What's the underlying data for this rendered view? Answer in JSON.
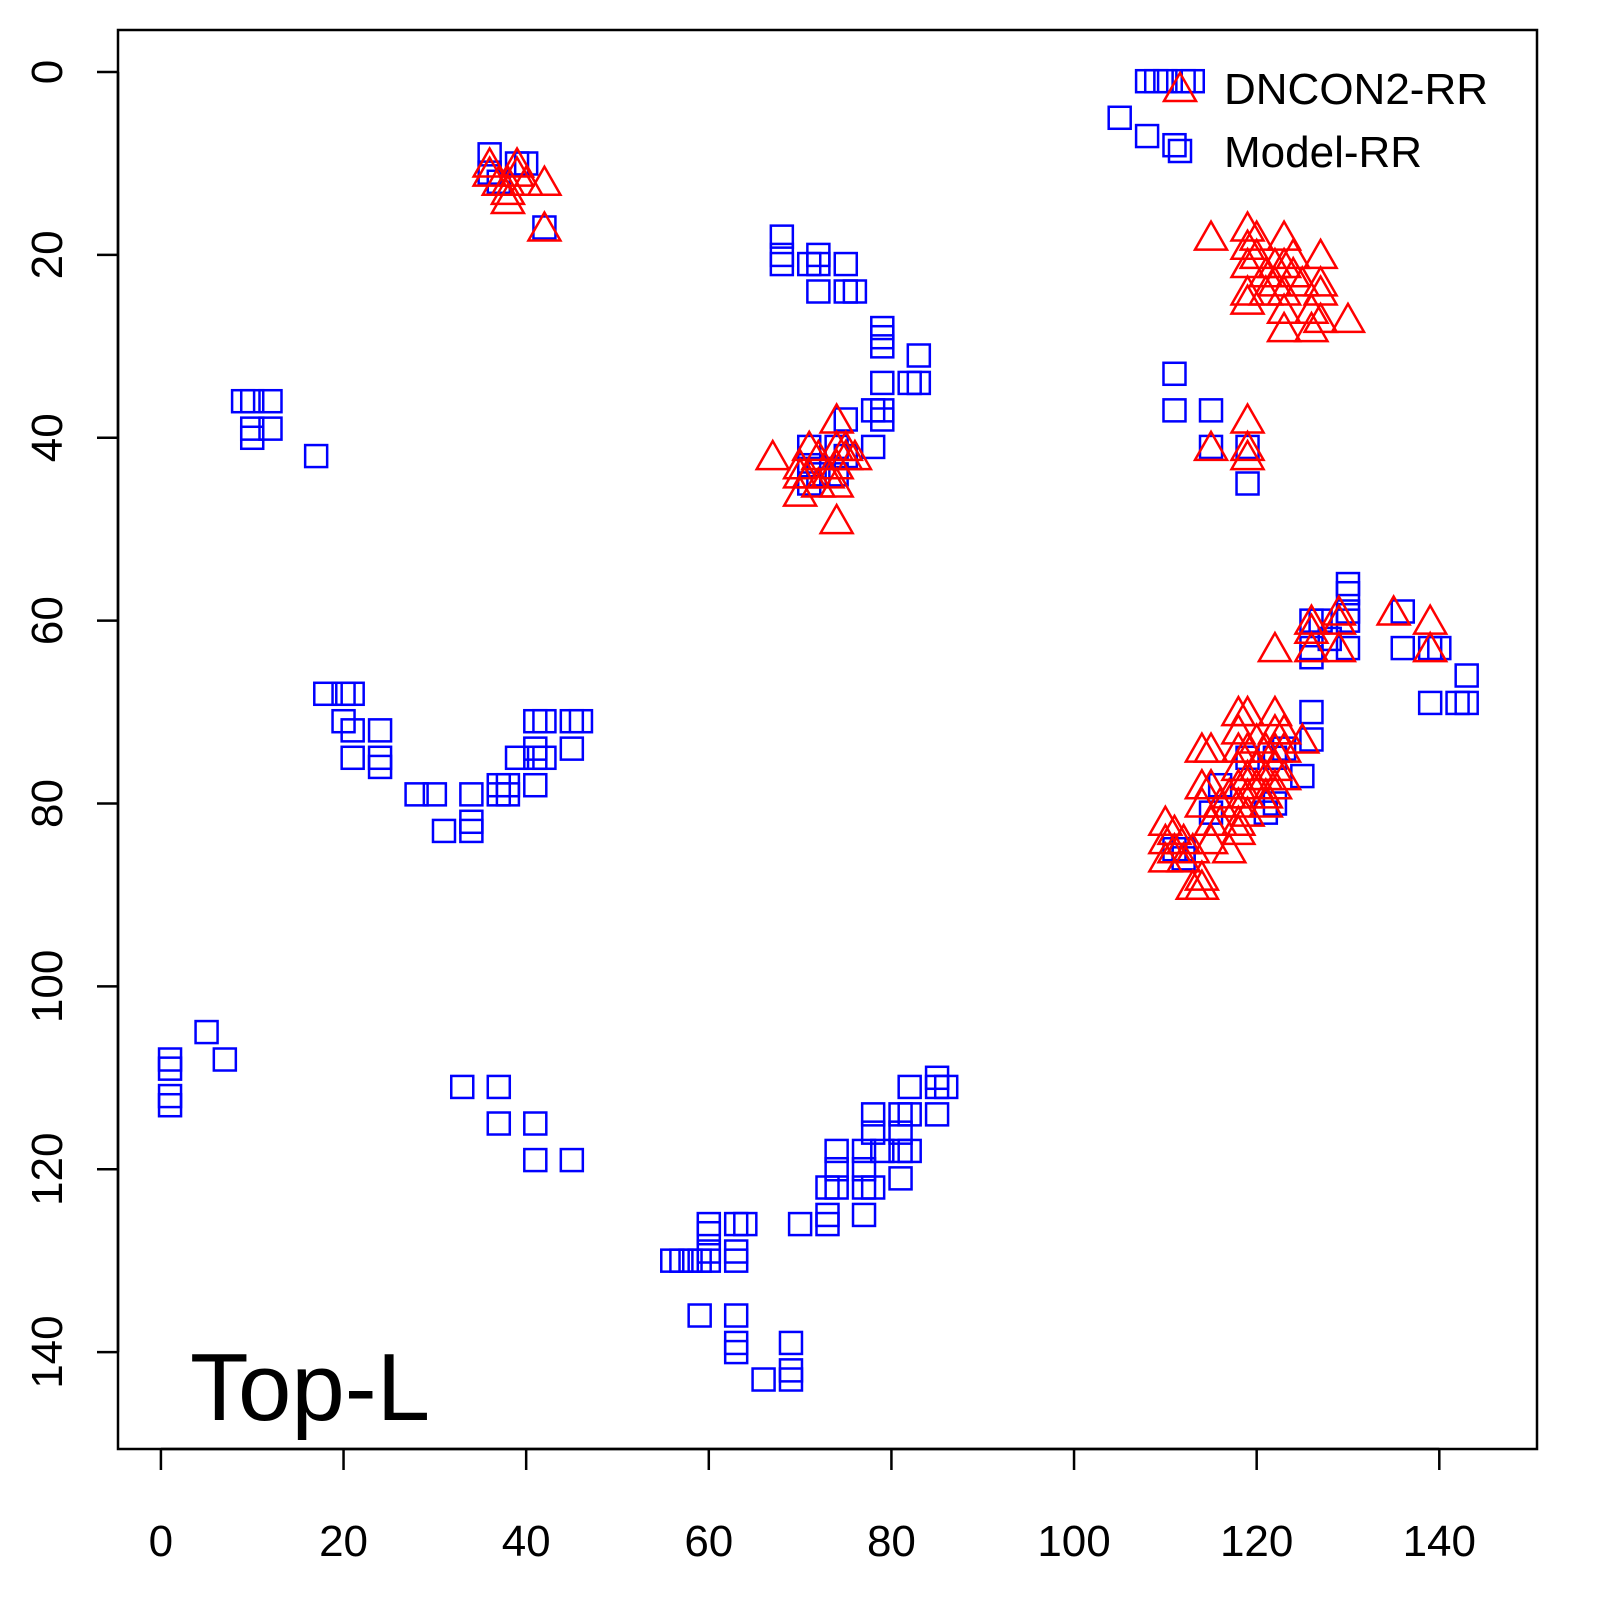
{
  "chart_data": {
    "type": "scatter",
    "annotation": "Top-L",
    "xlim": [
      -4.7,
      150.7
    ],
    "ylim": [
      150.6,
      -4.6
    ],
    "xticks": [
      0,
      20,
      40,
      60,
      80,
      100,
      120,
      140
    ],
    "yticks": [
      0,
      20,
      40,
      60,
      80,
      100,
      120,
      140
    ],
    "legend": "topright",
    "series": [
      {
        "name": "DNCON2-RR",
        "color": "#ff0000",
        "marker": "triangle",
        "x": [
          36,
          36,
          37,
          38,
          38,
          39,
          39,
          40,
          42,
          42,
          38,
          115,
          119,
          119,
          119,
          119,
          119,
          120,
          120,
          121,
          122,
          122,
          123,
          123,
          123,
          123,
          123,
          124,
          124,
          125,
          126,
          126,
          127,
          127,
          127,
          127,
          130,
          121,
          119,
          119,
          119,
          115,
          67,
          70,
          70,
          70,
          71,
          71,
          72,
          72,
          73,
          74,
          74,
          74,
          74,
          74,
          75,
          75,
          76,
          122,
          126,
          126,
          126,
          129,
          129,
          129,
          135,
          139,
          139,
          125,
          110,
          110,
          110,
          111,
          111,
          112,
          112,
          113,
          113,
          114,
          114,
          114,
          114,
          114,
          115,
          115,
          115,
          115,
          116,
          116,
          117,
          117,
          118,
          118,
          118,
          118,
          118,
          118,
          118,
          118,
          119,
          119,
          119,
          119,
          119,
          120,
          120,
          120,
          121,
          121,
          121,
          122,
          122,
          122,
          122,
          122,
          123,
          123,
          123,
          121
        ],
        "y": [
          10,
          11,
          12,
          13,
          14,
          10,
          11,
          12,
          12,
          17,
          12,
          18,
          17,
          19,
          21,
          24,
          25,
          18,
          20,
          22,
          21,
          23,
          18,
          21,
          24,
          26,
          28,
          20,
          22,
          23,
          26,
          28,
          20,
          23,
          24,
          27,
          27,
          24,
          38,
          41,
          42,
          41,
          42,
          43,
          44,
          46,
          41,
          44,
          42,
          45,
          44,
          38,
          41,
          43,
          45,
          49,
          41,
          42,
          42,
          63,
          60,
          61,
          63,
          59,
          60,
          63,
          59,
          60,
          63,
          73,
          82,
          84,
          86,
          83,
          85,
          84,
          86,
          85,
          89,
          88,
          89,
          74,
          78,
          80,
          74,
          78,
          82,
          84,
          80,
          82,
          79,
          85,
          70,
          72,
          74,
          76,
          78,
          80,
          82,
          83,
          70,
          74,
          77,
          79,
          81,
          73,
          76,
          78,
          74,
          77,
          79,
          70,
          72,
          74,
          76,
          78,
          72,
          74,
          77,
          80
        ]
      },
      {
        "name": "Model-RR",
        "color": "#0000ff",
        "marker": "square",
        "x": [
          36,
          36,
          39,
          40,
          37,
          42,
          108,
          109,
          110,
          112,
          113,
          105,
          108,
          111,
          68,
          68,
          68,
          71,
          72,
          72,
          72,
          75,
          75,
          76,
          79,
          79,
          79,
          83,
          82,
          83,
          79,
          75,
          78,
          79,
          79,
          78,
          71,
          71,
          71,
          72,
          74,
          74,
          75,
          9,
          10,
          12,
          12,
          10,
          10,
          17,
          111,
          111,
          115,
          115,
          119,
          119,
          18,
          20,
          21,
          20,
          21,
          21,
          24,
          24,
          24,
          28,
          30,
          34,
          34,
          34,
          31,
          37,
          38,
          37,
          38,
          39,
          41,
          42,
          45,
          46,
          41,
          41,
          42,
          41,
          45,
          130,
          130,
          130,
          130,
          130,
          126,
          126,
          126,
          127,
          128,
          136,
          136,
          139,
          140,
          143,
          139,
          142,
          143,
          126,
          126,
          125,
          122,
          121,
          111,
          112,
          112,
          115,
          116,
          119,
          122,
          123,
          1,
          1,
          1,
          1,
          5,
          7,
          33,
          37,
          37,
          41,
          41,
          45,
          56,
          57,
          58,
          59,
          60,
          60,
          60,
          60,
          63,
          64,
          63,
          63,
          59,
          63,
          63,
          63,
          66,
          69,
          69,
          69,
          70,
          73,
          73,
          73,
          74,
          74,
          74,
          77,
          77,
          77,
          77,
          78,
          78,
          78,
          79,
          81,
          81,
          81,
          81,
          82,
          82,
          82,
          85,
          85,
          86,
          85
        ],
        "y": [
          9,
          11,
          10,
          10,
          12,
          17,
          1,
          1,
          1,
          1,
          1,
          5,
          7,
          8,
          18,
          20,
          21,
          21,
          20,
          21,
          24,
          21,
          24,
          24,
          28,
          29,
          30,
          31,
          34,
          34,
          34,
          38,
          37,
          37,
          38,
          41,
          41,
          43,
          45,
          44,
          41,
          44,
          42,
          36,
          36,
          36,
          39,
          39,
          40,
          42,
          33,
          37,
          37,
          41,
          41,
          45,
          68,
          68,
          68,
          71,
          72,
          75,
          72,
          75,
          76,
          79,
          79,
          79,
          82,
          83,
          83,
          78,
          78,
          79,
          79,
          75,
          71,
          71,
          71,
          71,
          74,
          75,
          75,
          78,
          74,
          56,
          57,
          59,
          60,
          63,
          60,
          63,
          64,
          60,
          62,
          59,
          63,
          63,
          63,
          66,
          69,
          69,
          69,
          70,
          73,
          77,
          80,
          81,
          85,
          85,
          86,
          81,
          78,
          75,
          75,
          74,
          108,
          109,
          112,
          113,
          105,
          108,
          111,
          111,
          115,
          115,
          119,
          119,
          130,
          130,
          130,
          130,
          130,
          126,
          127,
          129,
          126,
          126,
          129,
          130,
          136,
          136,
          139,
          140,
          143,
          139,
          142,
          143,
          126,
          125,
          126,
          122,
          122,
          118,
          120,
          118,
          120,
          122,
          125,
          122,
          114,
          116,
          118,
          114,
          116,
          118,
          121,
          111,
          114,
          118,
          110,
          111,
          111,
          114
        ]
      }
    ]
  }
}
